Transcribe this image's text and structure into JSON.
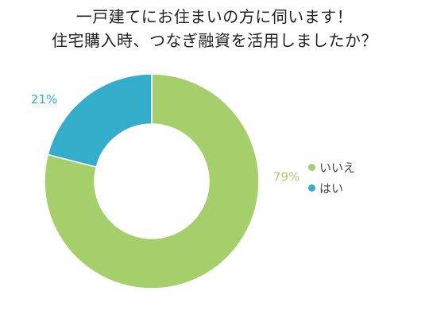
{
  "chart_data": {
    "type": "pie",
    "title_lines": [
      "一戸建てにお住まいの方に伺います！",
      "住宅購入時、つなぎ融資を活用しましたか？"
    ],
    "categories": [
      "いいえ",
      "はい"
    ],
    "values": [
      79,
      21
    ],
    "value_labels": [
      "79%",
      "21%"
    ],
    "colors": [
      "#a5cf6a",
      "#34adcb"
    ],
    "legend_position": "right"
  }
}
